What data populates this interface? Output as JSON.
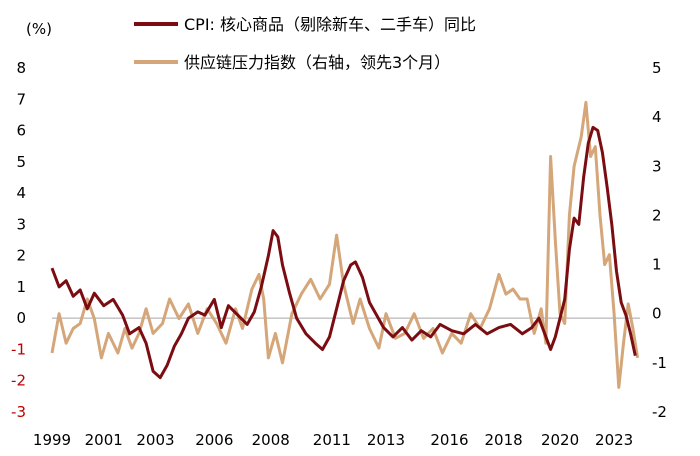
{
  "chart_data": {
    "type": "line",
    "unit_label": "(%)",
    "y_left": {
      "min": -3,
      "max": 8,
      "step": 1
    },
    "y_right": {
      "min": -2,
      "max": 5,
      "step": 1
    },
    "x_range": [
      1999.0,
      2024.0
    ],
    "x_tick_labels": [
      "1999",
      "2001",
      "2003",
      "2006",
      "2008",
      "2011",
      "2013",
      "2016",
      "2018",
      "2020",
      "2023"
    ],
    "x_tick_positions": [
      1999.0,
      2001.2,
      2003.4,
      2005.9,
      2008.3,
      2010.9,
      2013.2,
      2015.9,
      2018.2,
      2020.6,
      2022.9
    ],
    "legend": {
      "placement": "top"
    },
    "series": [
      {
        "name": "CPI: 核心商品（剔除新车、二手车）同比",
        "color": "#7b0d12",
        "axis": "left",
        "points": [
          [
            1999.0,
            1.6
          ],
          [
            1999.3,
            1.0
          ],
          [
            1999.6,
            1.2
          ],
          [
            1999.9,
            0.7
          ],
          [
            2000.2,
            0.9
          ],
          [
            2000.5,
            0.3
          ],
          [
            2000.8,
            0.8
          ],
          [
            2001.2,
            0.4
          ],
          [
            2001.6,
            0.6
          ],
          [
            2002.0,
            0.1
          ],
          [
            2002.3,
            -0.5
          ],
          [
            2002.7,
            -0.3
          ],
          [
            2003.0,
            -0.8
          ],
          [
            2003.3,
            -1.7
          ],
          [
            2003.6,
            -1.9
          ],
          [
            2003.9,
            -1.5
          ],
          [
            2004.2,
            -0.9
          ],
          [
            2004.5,
            -0.5
          ],
          [
            2004.8,
            0.0
          ],
          [
            2005.2,
            0.2
          ],
          [
            2005.5,
            0.1
          ],
          [
            2005.9,
            0.6
          ],
          [
            2006.2,
            -0.3
          ],
          [
            2006.5,
            0.4
          ],
          [
            2006.9,
            0.1
          ],
          [
            2007.3,
            -0.2
          ],
          [
            2007.6,
            0.2
          ],
          [
            2007.9,
            1.0
          ],
          [
            2008.2,
            2.0
          ],
          [
            2008.4,
            2.8
          ],
          [
            2008.6,
            2.6
          ],
          [
            2008.8,
            1.7
          ],
          [
            2009.1,
            0.8
          ],
          [
            2009.4,
            0.0
          ],
          [
            2009.8,
            -0.5
          ],
          [
            2010.2,
            -0.8
          ],
          [
            2010.5,
            -1.0
          ],
          [
            2010.8,
            -0.6
          ],
          [
            2011.1,
            0.3
          ],
          [
            2011.4,
            1.2
          ],
          [
            2011.7,
            1.7
          ],
          [
            2011.9,
            1.8
          ],
          [
            2012.2,
            1.3
          ],
          [
            2012.5,
            0.5
          ],
          [
            2012.8,
            0.1
          ],
          [
            2013.1,
            -0.3
          ],
          [
            2013.5,
            -0.6
          ],
          [
            2013.9,
            -0.3
          ],
          [
            2014.3,
            -0.7
          ],
          [
            2014.7,
            -0.4
          ],
          [
            2015.1,
            -0.6
          ],
          [
            2015.5,
            -0.2
          ],
          [
            2016.0,
            -0.4
          ],
          [
            2016.5,
            -0.5
          ],
          [
            2017.0,
            -0.2
          ],
          [
            2017.5,
            -0.5
          ],
          [
            2018.0,
            -0.3
          ],
          [
            2018.5,
            -0.2
          ],
          [
            2019.0,
            -0.5
          ],
          [
            2019.4,
            -0.3
          ],
          [
            2019.7,
            0.0
          ],
          [
            2020.0,
            -0.6
          ],
          [
            2020.2,
            -1.0
          ],
          [
            2020.4,
            -0.6
          ],
          [
            2020.6,
            0.0
          ],
          [
            2020.8,
            0.6
          ],
          [
            2021.0,
            2.2
          ],
          [
            2021.2,
            3.2
          ],
          [
            2021.4,
            3.0
          ],
          [
            2021.6,
            4.5
          ],
          [
            2021.8,
            5.6
          ],
          [
            2022.0,
            6.1
          ],
          [
            2022.2,
            6.0
          ],
          [
            2022.4,
            5.3
          ],
          [
            2022.6,
            4.2
          ],
          [
            2022.8,
            3.0
          ],
          [
            2023.0,
            1.5
          ],
          [
            2023.2,
            0.5
          ],
          [
            2023.4,
            0.1
          ],
          [
            2023.6,
            -0.5
          ],
          [
            2023.8,
            -1.2
          ]
        ]
      },
      {
        "name": "供应链压力指数（右轴，领先3个月）",
        "color": "#d4a679",
        "axis": "right",
        "points": [
          [
            1999.0,
            -0.8
          ],
          [
            1999.3,
            0.0
          ],
          [
            1999.6,
            -0.6
          ],
          [
            1999.9,
            -0.3
          ],
          [
            2000.2,
            -0.2
          ],
          [
            2000.5,
            0.3
          ],
          [
            2000.8,
            -0.1
          ],
          [
            2001.1,
            -0.9
          ],
          [
            2001.4,
            -0.4
          ],
          [
            2001.8,
            -0.8
          ],
          [
            2002.1,
            -0.3
          ],
          [
            2002.4,
            -0.7
          ],
          [
            2002.7,
            -0.4
          ],
          [
            2003.0,
            0.1
          ],
          [
            2003.3,
            -0.4
          ],
          [
            2003.7,
            -0.2
          ],
          [
            2004.0,
            0.3
          ],
          [
            2004.4,
            -0.1
          ],
          [
            2004.8,
            0.2
          ],
          [
            2005.2,
            -0.4
          ],
          [
            2005.6,
            0.1
          ],
          [
            2006.0,
            -0.2
          ],
          [
            2006.4,
            -0.6
          ],
          [
            2006.8,
            0.1
          ],
          [
            2007.1,
            -0.3
          ],
          [
            2007.5,
            0.5
          ],
          [
            2007.8,
            0.8
          ],
          [
            2008.0,
            0.3
          ],
          [
            2008.2,
            -0.9
          ],
          [
            2008.5,
            -0.4
          ],
          [
            2008.8,
            -1.0
          ],
          [
            2009.2,
            0.0
          ],
          [
            2009.6,
            0.4
          ],
          [
            2010.0,
            0.7
          ],
          [
            2010.4,
            0.3
          ],
          [
            2010.8,
            0.6
          ],
          [
            2011.1,
            1.6
          ],
          [
            2011.4,
            0.6
          ],
          [
            2011.8,
            -0.2
          ],
          [
            2012.1,
            0.3
          ],
          [
            2012.5,
            -0.3
          ],
          [
            2012.9,
            -0.7
          ],
          [
            2013.2,
            0.0
          ],
          [
            2013.6,
            -0.5
          ],
          [
            2014.0,
            -0.4
          ],
          [
            2014.4,
            0.0
          ],
          [
            2014.8,
            -0.5
          ],
          [
            2015.2,
            -0.3
          ],
          [
            2015.6,
            -0.8
          ],
          [
            2016.0,
            -0.4
          ],
          [
            2016.4,
            -0.6
          ],
          [
            2016.8,
            0.0
          ],
          [
            2017.2,
            -0.3
          ],
          [
            2017.6,
            0.1
          ],
          [
            2018.0,
            0.8
          ],
          [
            2018.3,
            0.4
          ],
          [
            2018.6,
            0.5
          ],
          [
            2018.9,
            0.3
          ],
          [
            2019.2,
            0.3
          ],
          [
            2019.5,
            -0.4
          ],
          [
            2019.8,
            0.1
          ],
          [
            2020.0,
            -0.6
          ],
          [
            2020.2,
            3.2
          ],
          [
            2020.4,
            1.5
          ],
          [
            2020.6,
            0.0
          ],
          [
            2020.8,
            -0.2
          ],
          [
            2021.0,
            2.0
          ],
          [
            2021.2,
            3.0
          ],
          [
            2021.5,
            3.6
          ],
          [
            2021.7,
            4.3
          ],
          [
            2021.9,
            3.2
          ],
          [
            2022.1,
            3.4
          ],
          [
            2022.3,
            2.0
          ],
          [
            2022.5,
            1.0
          ],
          [
            2022.7,
            1.2
          ],
          [
            2022.9,
            0.0
          ],
          [
            2023.1,
            -1.5
          ],
          [
            2023.3,
            -0.6
          ],
          [
            2023.5,
            0.2
          ],
          [
            2023.7,
            -0.3
          ],
          [
            2023.9,
            -0.9
          ]
        ]
      }
    ]
  }
}
